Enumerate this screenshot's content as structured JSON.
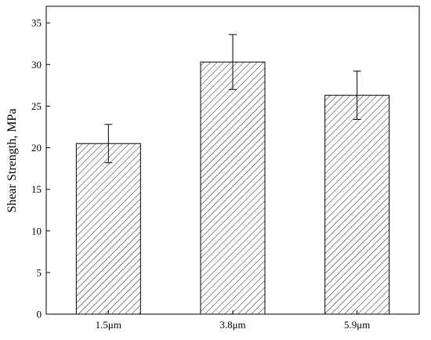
{
  "chart_data": {
    "type": "bar",
    "title": "",
    "xlabel": "",
    "ylabel": "Shear Strength, MPa",
    "categories": [
      "1.5μm",
      "3.8μm",
      "5.9μm"
    ],
    "values": [
      20.5,
      30.3,
      26.3
    ],
    "error": [
      2.3,
      3.3,
      2.9
    ],
    "ylim": [
      0,
      37
    ],
    "yticks": [
      0,
      5,
      10,
      15,
      20,
      25,
      30,
      35
    ],
    "ytick_labels": [
      "0",
      "5",
      "10",
      "15",
      "20",
      "25",
      "30",
      "35"
    ],
    "grid": false,
    "legend": "none",
    "bar_fill": "hatched",
    "bar_color": "#ffffff",
    "hatch_color": "#1a1a1a",
    "axis_color": "#000000"
  }
}
